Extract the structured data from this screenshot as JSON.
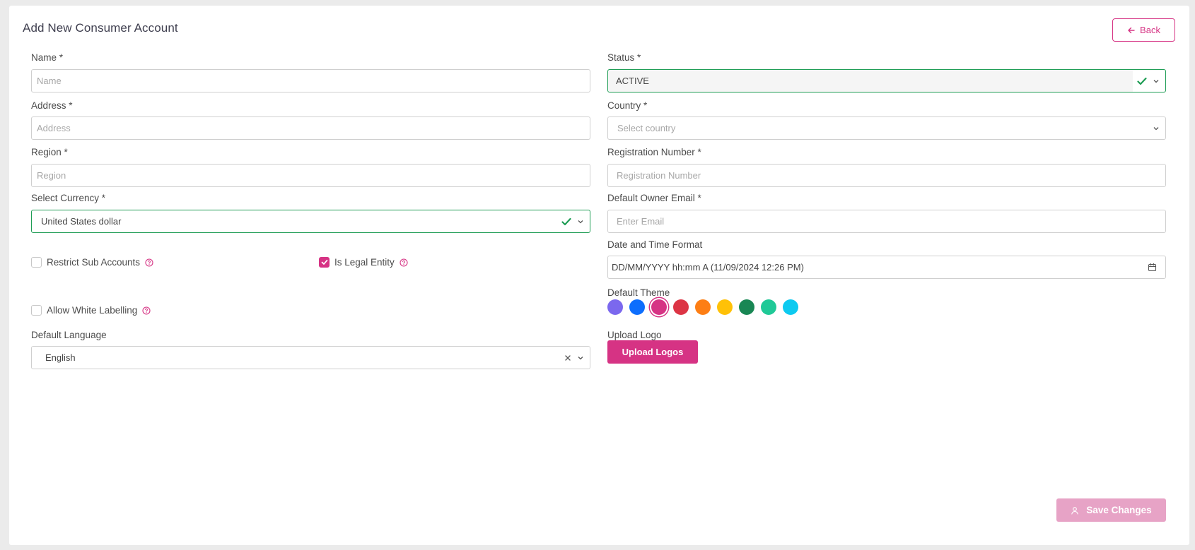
{
  "header": {
    "title": "Add New Consumer Account",
    "back_label": "Back"
  },
  "left": {
    "name": {
      "label": "Name *",
      "placeholder": "Name"
    },
    "address": {
      "label": "Address *",
      "placeholder": "Address"
    },
    "region": {
      "label": "Region *",
      "placeholder": "Region"
    },
    "currency": {
      "label": "Select Currency *",
      "value": "United States dollar"
    },
    "restrict_sub_accounts": {
      "label": "Restrict Sub Accounts",
      "checked": false
    },
    "is_legal_entity": {
      "label": "Is Legal Entity",
      "checked": true
    },
    "allow_white_labelling": {
      "label": "Allow White Labelling",
      "checked": false
    },
    "language": {
      "label": "Default Language",
      "value": "English"
    }
  },
  "right": {
    "status": {
      "label": "Status *",
      "value": "ACTIVE"
    },
    "country": {
      "label": "Country *",
      "placeholder": "Select country"
    },
    "registration": {
      "label": "Registration Number *",
      "placeholder": "Registration Number"
    },
    "owner_email": {
      "label": "Default Owner Email *",
      "placeholder": "Enter Email"
    },
    "date_format": {
      "label": "Date and Time Format",
      "value": "DD/MM/YYYY hh:mm A (11/09/2024 12:26 PM)"
    },
    "theme": {
      "label": "Default Theme",
      "colors": [
        "#7b68ee",
        "#0d6efd",
        "#d63384",
        "#dc3545",
        "#fd7e14",
        "#ffc107",
        "#198754",
        "#20c997",
        "#0dcaf0"
      ],
      "selected_index": 2
    },
    "logo": {
      "label": "Upload Logo",
      "button_label": "Upload Logos"
    }
  },
  "footer": {
    "save_label": "Save Changes"
  }
}
